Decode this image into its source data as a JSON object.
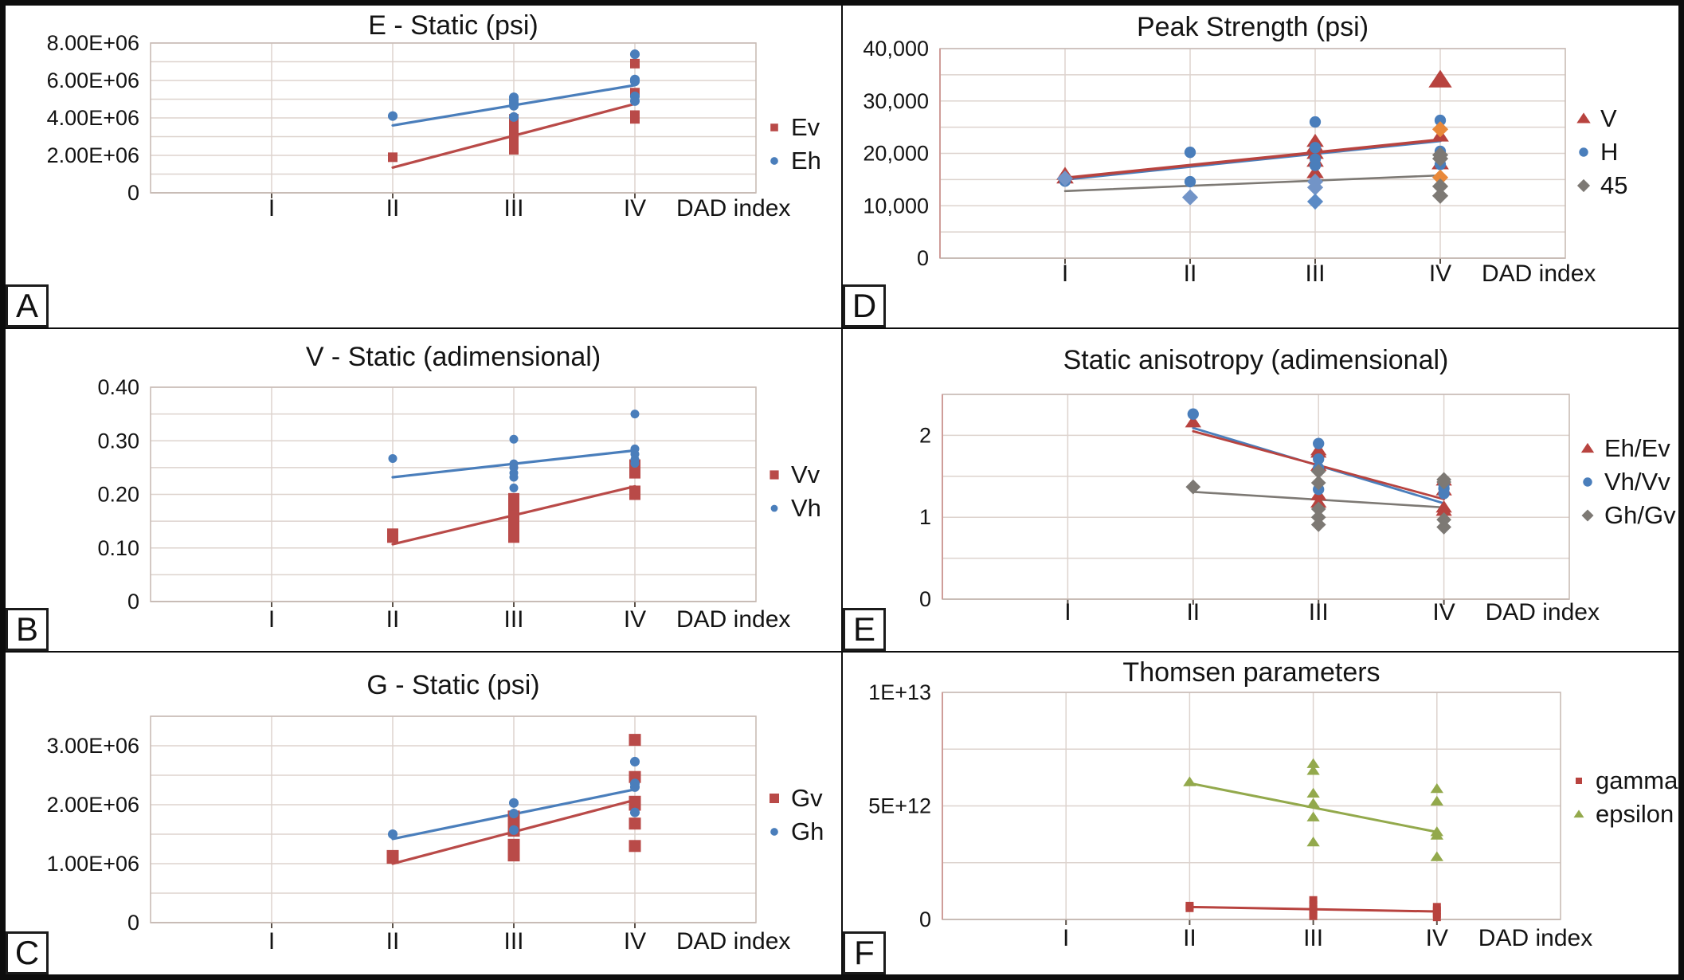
{
  "figure": {
    "background": "#ffffff",
    "border_color": "#0d0d0d",
    "x_axis_label": "DAD index",
    "categories": [
      "I",
      "II",
      "III",
      "IV"
    ]
  },
  "chart_data": [
    {
      "letter": "A",
      "type": "scatter",
      "title": "E - Static (psi)",
      "xlabel": "DAD index",
      "categories": [
        "I",
        "II",
        "III",
        "IV"
      ],
      "ylim": [
        0,
        8000000
      ],
      "grid_step": 1000000,
      "grid": true,
      "legend_position": "right",
      "yticks": [
        {
          "v": 8000000,
          "label": "8.00E+06"
        },
        {
          "v": 6000000,
          "label": "6.00E+06"
        },
        {
          "v": 4000000,
          "label": "4.00E+06"
        },
        {
          "v": 2000000,
          "label": "2.00E+06"
        },
        {
          "v": 0,
          "label": "0"
        }
      ],
      "series": [
        {
          "name": "Ev",
          "marker": "square",
          "color": "#b94a48",
          "points": [
            [
              1,
              1900000
            ],
            [
              2,
              2300000
            ],
            [
              2,
              2550000
            ],
            [
              2,
              2900000
            ],
            [
              2,
              3100000
            ],
            [
              2,
              3350000
            ],
            [
              2,
              3850000
            ],
            [
              2,
              3950000
            ],
            [
              3,
              3950000
            ],
            [
              3,
              4150000
            ],
            [
              3,
              5350000
            ],
            [
              3,
              6900000
            ]
          ],
          "trend": [
            1,
            1350000,
            3,
            4750000
          ]
        },
        {
          "name": "Eh",
          "marker": "circle",
          "color": "#4a7ebb",
          "points": [
            [
              1,
              4100000
            ],
            [
              2,
              4050000
            ],
            [
              2,
              4650000
            ],
            [
              2,
              4800000
            ],
            [
              2,
              4950000
            ],
            [
              2,
              5100000
            ],
            [
              3,
              4900000
            ],
            [
              3,
              5150000
            ],
            [
              3,
              5950000
            ],
            [
              3,
              6050000
            ],
            [
              3,
              7400000
            ]
          ],
          "trend": [
            1,
            3600000,
            3,
            5750000
          ]
        }
      ]
    },
    {
      "letter": "B",
      "type": "scatter",
      "title": "V - Static (adimensional)",
      "xlabel": "DAD index",
      "categories": [
        "I",
        "II",
        "III",
        "IV"
      ],
      "ylim": [
        0,
        0.4
      ],
      "grid_step": 0.05,
      "grid": true,
      "legend_position": "right",
      "yticks": [
        {
          "v": 0.4,
          "label": "0.40"
        },
        {
          "v": 0.3,
          "label": "0.30"
        },
        {
          "v": 0.2,
          "label": "0.20"
        },
        {
          "v": 0.1,
          "label": "0.10"
        },
        {
          "v": 0,
          "label": "0"
        }
      ],
      "series": [
        {
          "name": "Vv",
          "marker": "square",
          "color": "#b94a48",
          "points": [
            [
              1,
              0.12
            ],
            [
              1,
              0.126
            ],
            [
              2,
              0.12
            ],
            [
              2,
              0.127
            ],
            [
              2,
              0.133
            ],
            [
              2,
              0.14
            ],
            [
              2,
              0.155
            ],
            [
              2,
              0.163
            ],
            [
              2,
              0.18
            ],
            [
              2,
              0.187
            ],
            [
              2,
              0.192
            ],
            [
              3,
              0.2
            ],
            [
              3,
              0.206
            ],
            [
              3,
              0.24
            ],
            [
              3,
              0.248
            ],
            [
              3,
              0.255
            ]
          ],
          "trend": [
            1,
            0.107,
            3,
            0.215
          ]
        },
        {
          "name": "Vh",
          "marker": "circle",
          "color": "#4a7ebb",
          "points": [
            [
              1,
              0.267
            ],
            [
              2,
              0.212
            ],
            [
              2,
              0.232
            ],
            [
              2,
              0.24
            ],
            [
              2,
              0.25
            ],
            [
              2,
              0.257
            ],
            [
              2,
              0.303
            ],
            [
              3,
              0.258
            ],
            [
              3,
              0.265
            ],
            [
              3,
              0.275
            ],
            [
              3,
              0.285
            ],
            [
              3,
              0.35
            ]
          ],
          "trend": [
            1,
            0.232,
            3,
            0.282
          ]
        }
      ]
    },
    {
      "letter": "C",
      "type": "scatter",
      "title": "G - Static (psi)",
      "xlabel": "DAD index",
      "categories": [
        "I",
        "II",
        "III",
        "IV"
      ],
      "ylim": [
        0,
        3500000
      ],
      "grid_step": 500000,
      "grid": true,
      "legend_position": "right",
      "yticks": [
        {
          "v": 3000000,
          "label": "3.00E+06"
        },
        {
          "v": 2000000,
          "label": "2.00E+06"
        },
        {
          "v": 1000000,
          "label": "1.00E+06"
        },
        {
          "v": 0,
          "label": "0"
        }
      ],
      "series": [
        {
          "name": "Gv",
          "marker": "square",
          "color": "#b94a48",
          "points": [
            [
              1,
              1100000
            ],
            [
              1,
              1130000
            ],
            [
              2,
              1140000
            ],
            [
              2,
              1320000
            ],
            [
              2,
              1560000
            ],
            [
              2,
              1620000
            ],
            [
              2,
              1680000
            ],
            [
              2,
              1750000
            ],
            [
              2,
              1800000
            ],
            [
              3,
              1300000
            ],
            [
              3,
              1680000
            ],
            [
              3,
              2000000
            ],
            [
              3,
              2050000
            ],
            [
              3,
              2470000
            ],
            [
              3,
              3100000
            ]
          ],
          "trend": [
            1,
            1000000,
            3,
            2080000
          ]
        },
        {
          "name": "Gh",
          "marker": "circle",
          "color": "#4a7ebb",
          "points": [
            [
              1,
              1500000
            ],
            [
              2,
              1570000
            ],
            [
              2,
              1850000
            ],
            [
              2,
              2030000
            ],
            [
              3,
              1870000
            ],
            [
              3,
              2300000
            ],
            [
              3,
              2360000
            ],
            [
              3,
              2730000
            ]
          ],
          "trend": [
            1,
            1420000,
            3,
            2260000
          ]
        }
      ]
    },
    {
      "letter": "D",
      "type": "scatter",
      "title": "Peak Strength (psi)",
      "xlabel": "DAD index",
      "categories": [
        "I",
        "II",
        "III",
        "IV"
      ],
      "ylim": [
        0,
        40000
      ],
      "grid_step": 5000,
      "grid": true,
      "legend_position": "right",
      "yticks": [
        {
          "v": 40000,
          "label": "40,000"
        },
        {
          "v": 30000,
          "label": "30,000"
        },
        {
          "v": 20000,
          "label": "20,000"
        },
        {
          "v": 10000,
          "label": "10,000"
        },
        {
          "v": 0,
          "label": "0"
        }
      ],
      "series": [
        {
          "name": "V",
          "marker": "triangle",
          "color": "#b8433f",
          "points": [
            [
              0,
              16000
            ],
            [
              0,
              15300
            ],
            [
              2,
              22300
            ],
            [
              2,
              21300
            ],
            [
              2,
              20000
            ],
            [
              2,
              18500
            ],
            [
              2,
              16300
            ],
            [
              3,
              34000,
              null,
              1.35
            ],
            [
              3,
              23300
            ],
            [
              3,
              18000
            ]
          ],
          "trend": [
            0,
            15300,
            3,
            22600
          ]
        },
        {
          "name": "H",
          "marker": "circle",
          "color": "#4a7ebb",
          "points": [
            [
              0,
              14700
            ],
            [
              1,
              20200
            ],
            [
              1,
              14600
            ],
            [
              2,
              26000
            ],
            [
              2,
              21100
            ],
            [
              2,
              18900
            ],
            [
              2,
              17700
            ],
            [
              3,
              26300
            ],
            [
              3,
              20400
            ],
            [
              3,
              17900
            ]
          ],
          "trend": [
            0,
            15050,
            3,
            22400
          ]
        },
        {
          "name": "45",
          "marker": "diamond",
          "color": "#7d7974",
          "points": [
            [
              0,
              15200,
              "#7294c7"
            ],
            [
              1,
              11600,
              "#7294c7"
            ],
            [
              2,
              14600,
              "#7294c7"
            ],
            [
              2,
              13500,
              "#7294c7"
            ],
            [
              2,
              10800,
              "#5b8ac5"
            ],
            [
              3,
              24600,
              "#e9893a"
            ],
            [
              3,
              19700
            ],
            [
              3,
              19000
            ],
            [
              3,
              15400,
              "#e9893a"
            ],
            [
              3,
              13700
            ],
            [
              3,
              11900
            ]
          ],
          "trend": [
            0,
            12800,
            3,
            15800
          ]
        }
      ]
    },
    {
      "letter": "E",
      "type": "scatter",
      "title": "Static anisotropy (adimensional)",
      "xlabel": "DAD index",
      "categories": [
        "I",
        "II",
        "III",
        "IV"
      ],
      "ylim": [
        0,
        2.5
      ],
      "grid_step": 0.5,
      "grid": true,
      "legend_position": "right",
      "yticks": [
        {
          "v": 2,
          "label": "2"
        },
        {
          "v": 1,
          "label": "1"
        },
        {
          "v": 0,
          "label": "0"
        }
      ],
      "series": [
        {
          "name": "Eh/Ev",
          "marker": "triangle",
          "color": "#b8433f",
          "points": [
            [
              1,
              2.16
            ],
            [
              2,
              1.82
            ],
            [
              2,
              1.79
            ],
            [
              2,
              1.63
            ],
            [
              2,
              1.27
            ],
            [
              2,
              1.18
            ],
            [
              3,
              1.45
            ],
            [
              3,
              1.33
            ],
            [
              3,
              1.12
            ],
            [
              3,
              1.08
            ]
          ],
          "trend": [
            1,
            2.05,
            3,
            1.22
          ]
        },
        {
          "name": "Vh/Vv",
          "marker": "circle",
          "color": "#4a7ebb",
          "points": [
            [
              1,
              2.26
            ],
            [
              2,
              1.9
            ],
            [
              2,
              1.71
            ],
            [
              2,
              1.6
            ],
            [
              2,
              1.34
            ],
            [
              3,
              1.4
            ],
            [
              3,
              1.35
            ],
            [
              3,
              1.29
            ]
          ],
          "trend": [
            1,
            2.09,
            3,
            1.17
          ]
        },
        {
          "name": "Gh/Gv",
          "marker": "diamond",
          "color": "#7d7974",
          "points": [
            [
              1,
              1.37
            ],
            [
              2,
              1.56
            ],
            [
              2,
              1.42
            ],
            [
              2,
              1.1
            ],
            [
              2,
              1.0
            ],
            [
              2,
              0.91
            ],
            [
              3,
              1.46
            ],
            [
              3,
              1.43
            ],
            [
              3,
              0.97
            ],
            [
              3,
              0.88
            ]
          ],
          "trend": [
            1,
            1.31,
            3,
            1.12
          ]
        }
      ]
    },
    {
      "letter": "F",
      "type": "scatter",
      "title": "Thomsen parameters",
      "xlabel": "DAD index",
      "categories": [
        "I",
        "II",
        "III",
        "IV"
      ],
      "ylim": [
        0,
        10000000000000
      ],
      "grid_step": 2500000000000,
      "grid": true,
      "legend_position": "right",
      "yticks": [
        {
          "v": 10000000000000,
          "label": "1E+13"
        },
        {
          "v": 5000000000000,
          "label": "5E+12"
        },
        {
          "v": 0,
          "label": "0"
        }
      ],
      "series": [
        {
          "name": "gamma",
          "marker": "square",
          "color": "#b8433f",
          "points": [
            [
              1,
              600000000000
            ],
            [
              1,
              500000000000
            ],
            [
              2,
              850000000000
            ],
            [
              2,
              650000000000
            ],
            [
              2,
              450000000000
            ],
            [
              2,
              250000000000
            ],
            [
              2,
              150000000000
            ],
            [
              3,
              550000000000
            ],
            [
              3,
              400000000000
            ],
            [
              3,
              250000000000
            ],
            [
              3,
              100000000000
            ]
          ],
          "trend": [
            1,
            550000000000,
            3,
            350000000000
          ]
        },
        {
          "name": "epsilon",
          "marker": "triangle",
          "color": "#93a94c",
          "points": [
            [
              1,
              6050000000000
            ],
            [
              2,
              6850000000000
            ],
            [
              2,
              6550000000000
            ],
            [
              2,
              5550000000000
            ],
            [
              2,
              5100000000000
            ],
            [
              2,
              4500000000000
            ],
            [
              2,
              3400000000000
            ],
            [
              3,
              5750000000000
            ],
            [
              3,
              5200000000000
            ],
            [
              3,
              3850000000000
            ],
            [
              3,
              3700000000000
            ],
            [
              3,
              2750000000000
            ]
          ],
          "trend": [
            1,
            6000000000000,
            3,
            3850000000000
          ]
        }
      ]
    }
  ]
}
